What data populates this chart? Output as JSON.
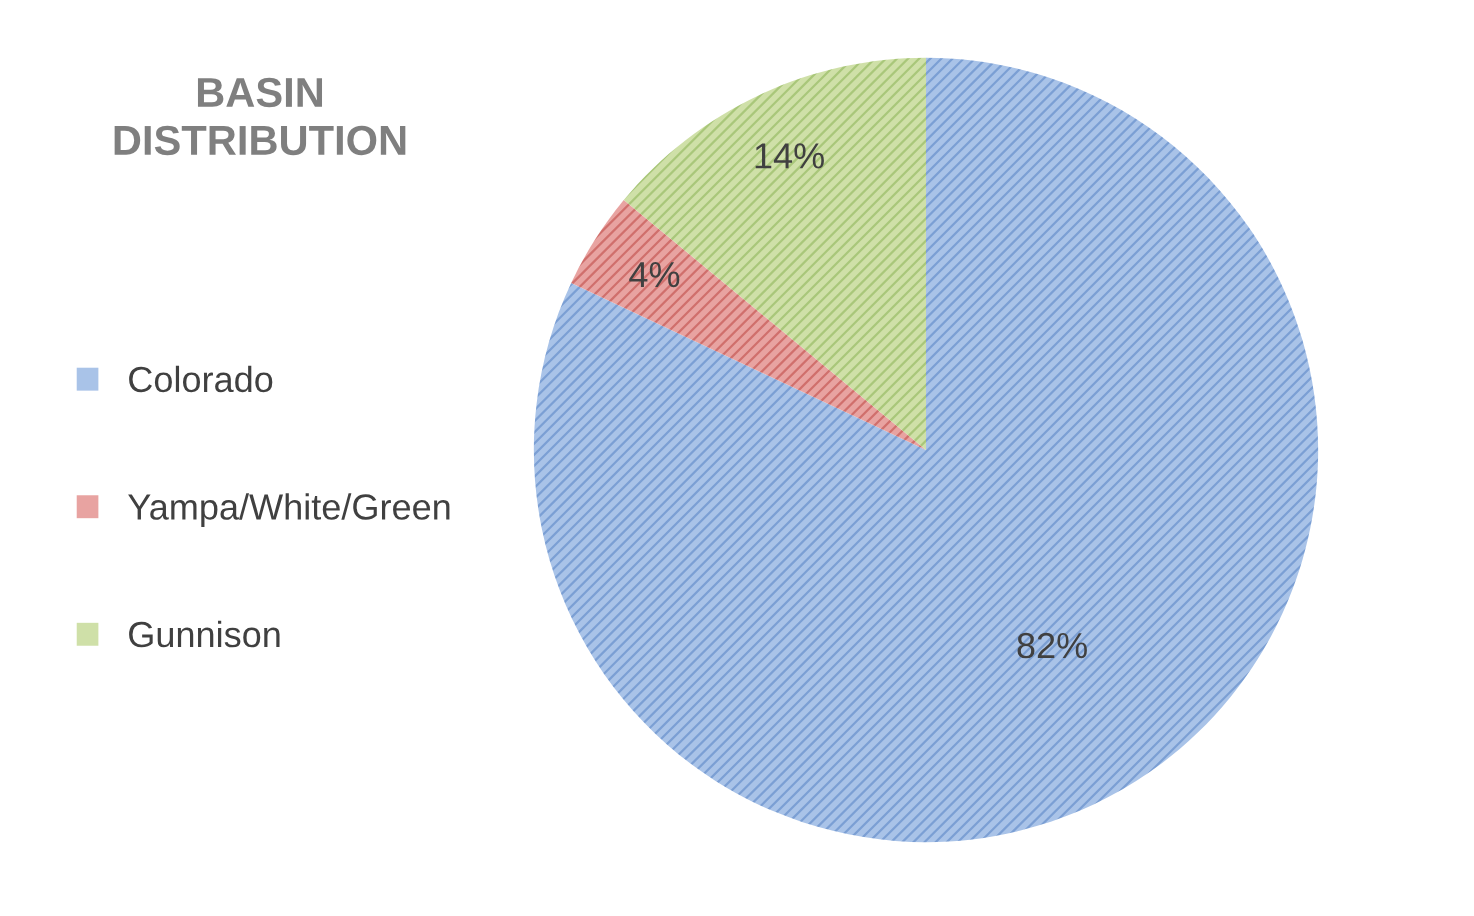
{
  "chart_data": {
    "type": "pie",
    "title": "BASIN DISTRIBUTION",
    "categories": [
      "Colorado",
      "Yampa/White/Green",
      "Gunnison"
    ],
    "values": [
      82,
      4,
      14
    ],
    "colors": [
      "#a9c3e8",
      "#e8a3a1",
      "#cfe0a8"
    ],
    "value_labels": [
      "82%",
      "4%",
      "14%"
    ],
    "legend": "left"
  }
}
